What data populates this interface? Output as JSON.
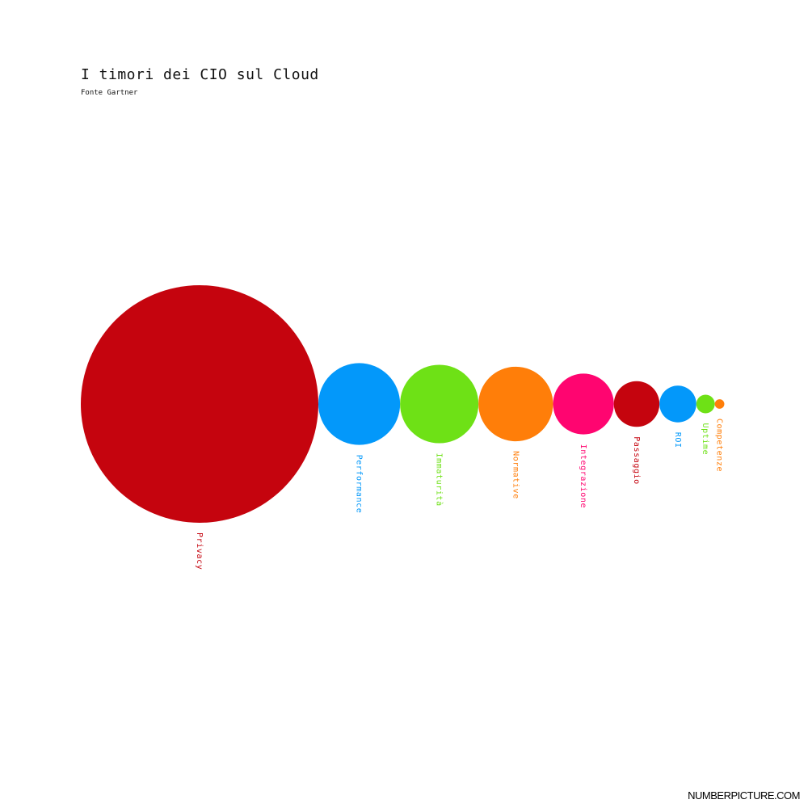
{
  "header": {
    "title": "I timori dei CIO sul Cloud",
    "subtitle": "Fonte Gartner"
  },
  "footer": {
    "brand": "NUMBERPICTURE.COM"
  },
  "chart_data": {
    "type": "bubble",
    "title": "I timori dei CIO sul Cloud",
    "subtitle": "Fonte Gartner",
    "legend": "none",
    "grid": false,
    "items": [
      {
        "label": "Privacy",
        "value": 100,
        "color": "#c5040e"
      },
      {
        "label": "Performance",
        "value": 34.4,
        "color": "#0398fa"
      },
      {
        "label": "Immaturità",
        "value": 33.0,
        "color": "#6ee116"
      },
      {
        "label": "Normative",
        "value": 31.4,
        "color": "#ff7e09"
      },
      {
        "label": "Integrazione",
        "value": 25.6,
        "color": "#ff0570"
      },
      {
        "label": "Passaggio",
        "value": 19.2,
        "color": "#c5040e"
      },
      {
        "label": "ROI",
        "value": 15.5,
        "color": "#0398fa"
      },
      {
        "label": "Uptime",
        "value": 7.8,
        "color": "#6ee116"
      },
      {
        "label": "Competenze",
        "value": 4.0,
        "color": "#ff7e09"
      }
    ]
  }
}
